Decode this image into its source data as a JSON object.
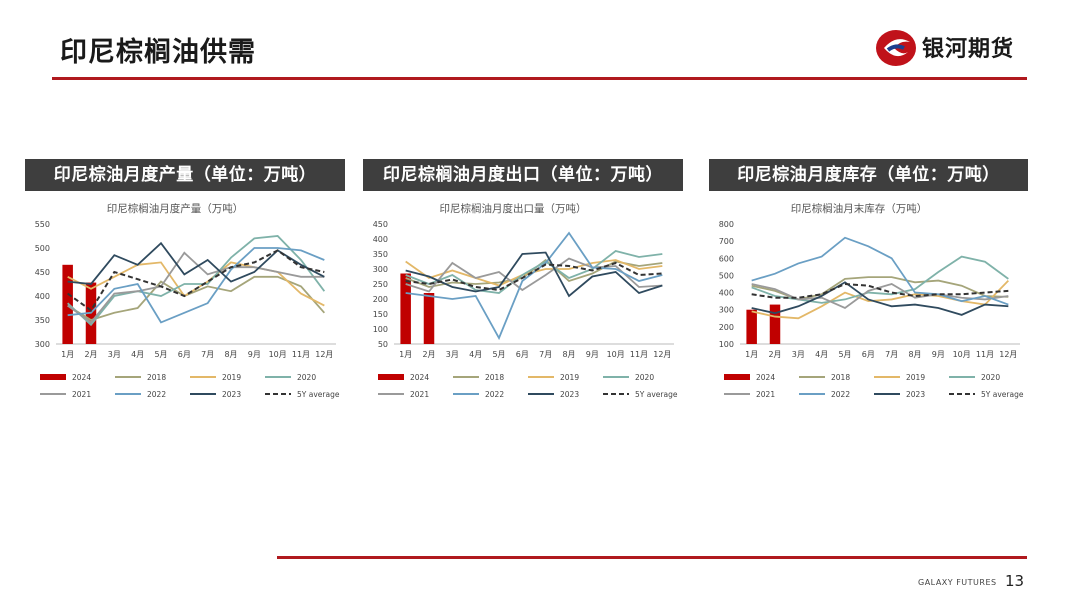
{
  "page": {
    "title": "印尼棕榈油供需",
    "logo_text": "银河期货",
    "footer": "GALAXY FUTURES",
    "page_number": "13"
  },
  "panels": [
    {
      "header": "印尼棕油月度产量（单位：万吨）"
    },
    {
      "header": "印尼棕榈油月度出口（单位：万吨）"
    },
    {
      "header": "印尼棕油月度库存（单位：万吨）"
    }
  ],
  "colors": {
    "2024": "#c00000",
    "2018": "#a5a57a",
    "2019": "#e3b868",
    "2020": "#7fb2a9",
    "2021": "#9a9a9a",
    "2022": "#6a9fc4",
    "2023": "#2f4a5e",
    "5Y average": "#333333"
  },
  "chart_data": [
    {
      "type": "line",
      "title": "印尼棕榈油月度产量（万吨）",
      "categories": [
        "1月",
        "2月",
        "3月",
        "4月",
        "5月",
        "6月",
        "7月",
        "8月",
        "9月",
        "10月",
        "11月",
        "12月"
      ],
      "ylim": [
        300,
        550
      ],
      "yticks": [
        300,
        350,
        400,
        450,
        500,
        550
      ],
      "bar_series": {
        "name": "2024",
        "values": [
          465,
          428
        ]
      },
      "series": [
        {
          "name": "2018",
          "values": [
            380,
            350,
            365,
            375,
            430,
            400,
            420,
            410,
            440,
            440,
            420,
            365
          ]
        },
        {
          "name": "2019",
          "values": [
            440,
            415,
            440,
            465,
            470,
            400,
            430,
            470,
            460,
            450,
            405,
            380
          ]
        },
        {
          "name": "2020",
          "values": [
            385,
            340,
            400,
            410,
            400,
            425,
            425,
            480,
            520,
            525,
            475,
            410
          ]
        },
        {
          "name": "2021",
          "values": [
            380,
            345,
            405,
            410,
            420,
            490,
            445,
            460,
            460,
            450,
            440,
            440
          ]
        },
        {
          "name": "2022",
          "values": [
            360,
            365,
            415,
            425,
            345,
            365,
            385,
            455,
            500,
            500,
            495,
            475
          ]
        },
        {
          "name": "2023",
          "values": [
            430,
            425,
            485,
            465,
            510,
            445,
            475,
            430,
            450,
            495,
            465,
            440
          ]
        },
        {
          "name": "5Y average",
          "values": [
            405,
            370,
            450,
            435,
            420,
            400,
            430,
            460,
            470,
            495,
            460,
            450
          ]
        }
      ],
      "legend": [
        "2024",
        "2018",
        "2019",
        "2020",
        "2021",
        "2022",
        "2023",
        "5Y average"
      ]
    },
    {
      "type": "line",
      "title": "印尼棕榈油月度出口量（万吨）",
      "categories": [
        "1月",
        "2月",
        "3月",
        "4月",
        "5月",
        "6月",
        "7月",
        "8月",
        "9月",
        "10月",
        "11月",
        "12月"
      ],
      "ylim": [
        50,
        450
      ],
      "yticks": [
        50,
        100,
        150,
        200,
        250,
        300,
        350,
        400,
        450
      ],
      "bar_series": {
        "name": "2024",
        "values": [
          285,
          220
        ]
      },
      "series": [
        {
          "name": "2018",
          "values": [
            270,
            240,
            255,
            250,
            255,
            270,
            330,
            260,
            285,
            325,
            310,
            320
          ]
        },
        {
          "name": "2019",
          "values": [
            325,
            270,
            295,
            270,
            245,
            280,
            300,
            300,
            320,
            330,
            300,
            310
          ]
        },
        {
          "name": "2020",
          "values": [
            280,
            250,
            280,
            230,
            220,
            280,
            325,
            270,
            300,
            360,
            340,
            350
          ]
        },
        {
          "name": "2021",
          "values": [
            250,
            225,
            320,
            270,
            290,
            230,
            280,
            335,
            305,
            310,
            240,
            245
          ]
        },
        {
          "name": "2022",
          "values": [
            220,
            210,
            200,
            210,
            70,
            260,
            320,
            420,
            305,
            300,
            260,
            280
          ]
        },
        {
          "name": "2023",
          "values": [
            295,
            275,
            240,
            225,
            240,
            350,
            355,
            210,
            275,
            290,
            220,
            245
          ]
        },
        {
          "name": "5Y average",
          "values": [
            260,
            250,
            265,
            240,
            230,
            270,
            315,
            310,
            295,
            320,
            280,
            285
          ]
        }
      ],
      "legend": [
        "2024",
        "2018",
        "2019",
        "2020",
        "2021",
        "2022",
        "2023",
        "5Y average"
      ]
    },
    {
      "type": "line",
      "title": "印尼棕榈油月末库存（万吨）",
      "categories": [
        "1月",
        "2月",
        "3月",
        "4月",
        "5月",
        "6月",
        "7月",
        "8月",
        "9月",
        "10月",
        "11月",
        "12月"
      ],
      "ylim": [
        100,
        800
      ],
      "yticks": [
        100,
        200,
        300,
        400,
        500,
        600,
        700,
        800
      ],
      "bar_series": {
        "name": "2024",
        "values": [
          300,
          330
        ]
      },
      "series": [
        {
          "name": "2018",
          "values": [
            440,
            410,
            360,
            390,
            480,
            490,
            490,
            460,
            470,
            440,
            380,
            375
          ]
        },
        {
          "name": "2019",
          "values": [
            290,
            260,
            250,
            320,
            400,
            350,
            360,
            390,
            380,
            350,
            330,
            470
          ]
        },
        {
          "name": "2020",
          "values": [
            430,
            380,
            360,
            340,
            360,
            400,
            390,
            420,
            520,
            610,
            580,
            480
          ]
        },
        {
          "name": "2021",
          "values": [
            450,
            420,
            360,
            370,
            310,
            410,
            450,
            370,
            390,
            370,
            360,
            380
          ]
        },
        {
          "name": "2022",
          "values": [
            470,
            510,
            570,
            610,
            720,
            670,
            600,
            400,
            390,
            350,
            380,
            330
          ]
        },
        {
          "name": "2023",
          "values": [
            310,
            280,
            320,
            380,
            460,
            360,
            320,
            330,
            310,
            270,
            330,
            320
          ]
        },
        {
          "name": "5Y average",
          "values": [
            390,
            370,
            370,
            390,
            450,
            440,
            400,
            380,
            390,
            390,
            400,
            410
          ]
        }
      ],
      "legend": [
        "2024",
        "2018",
        "2019",
        "2020",
        "2021",
        "2022",
        "2023",
        "5Y average"
      ]
    }
  ]
}
